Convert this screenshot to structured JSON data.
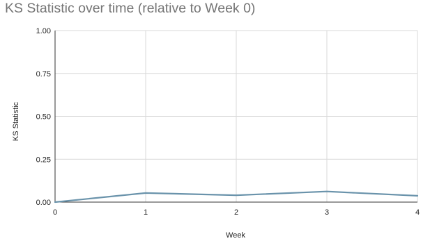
{
  "chart_data": {
    "type": "line",
    "title": "KS Statistic over time (relative to Week 0)",
    "xlabel": "Week",
    "ylabel": "KS Statistic",
    "x": [
      0,
      1,
      2,
      3,
      4
    ],
    "series": [
      {
        "values": [
          0.0,
          0.053,
          0.04,
          0.062,
          0.037
        ]
      }
    ],
    "xlim": [
      0,
      4
    ],
    "ylim": [
      0,
      1
    ],
    "x_ticks": [
      "0",
      "1",
      "2",
      "3",
      "4"
    ],
    "y_ticks": [
      "0.00",
      "0.25",
      "0.50",
      "0.75",
      "1.00"
    ],
    "grid": true,
    "legend": "none",
    "colors": {
      "line": "#6a93ab",
      "grid": "#d9d9d9",
      "axis": "#333333",
      "title": "#757575"
    }
  }
}
